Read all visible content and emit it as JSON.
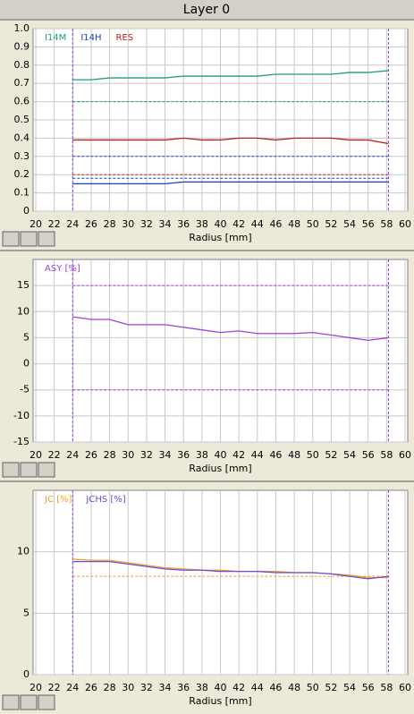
{
  "title": "Layer 0",
  "chart_data": [
    {
      "type": "line",
      "xlabel": "Radius [mm]",
      "x": [
        24,
        26,
        28,
        30,
        32,
        34,
        36,
        38,
        40,
        42,
        44,
        46,
        48,
        50,
        52,
        54,
        56,
        58.2
      ],
      "xlim": [
        20,
        60
      ],
      "xticks": [
        20,
        22,
        24,
        26,
        28,
        30,
        32,
        34,
        36,
        38,
        40,
        42,
        44,
        46,
        48,
        50,
        52,
        54,
        56,
        58,
        60
      ],
      "ylim": [
        0,
        1
      ],
      "yticks": [
        0,
        0.1,
        0.2,
        0.3,
        0.4,
        0.5,
        0.6,
        0.7,
        0.8,
        0.9,
        {
          "value": 1,
          "label": "1.0"
        }
      ],
      "grid": true,
      "series": [
        {
          "name": "I14M",
          "color": "#1a9e80",
          "values": [
            0.72,
            0.72,
            0.73,
            0.73,
            0.73,
            0.73,
            0.74,
            0.74,
            0.74,
            0.74,
            0.74,
            0.75,
            0.75,
            0.75,
            0.75,
            0.76,
            0.76,
            0.77
          ]
        },
        {
          "name": "I14H",
          "color": "#1f3fbf",
          "values": [
            0.15,
            0.15,
            0.15,
            0.15,
            0.15,
            0.15,
            0.16,
            0.16,
            0.16,
            0.16,
            0.16,
            0.16,
            0.16,
            0.16,
            0.16,
            0.16,
            0.16,
            0.16
          ]
        },
        {
          "name": "RES",
          "color": "#c01f1f",
          "values": [
            0.39,
            0.39,
            0.39,
            0.39,
            0.39,
            0.39,
            0.4,
            0.39,
            0.39,
            0.4,
            0.4,
            0.39,
            0.4,
            0.4,
            0.4,
            0.39,
            0.39,
            0.37
          ]
        }
      ],
      "hlines": [
        {
          "value": 0.6,
          "color": "#1a9e80"
        },
        {
          "value": 0.3,
          "color": "#1f3fbf"
        },
        {
          "value": 0.2,
          "color": "#c01f1f"
        },
        {
          "value": 0.18,
          "color": "#1f3fbf"
        }
      ],
      "vlines": [
        24,
        58.2
      ],
      "vline_color": "#8a3fe0"
    },
    {
      "type": "line",
      "xlabel": "Radius [mm]",
      "x": [
        24,
        26,
        28,
        30,
        32,
        34,
        36,
        38,
        40,
        42,
        44,
        46,
        48,
        50,
        52,
        54,
        56,
        58.2
      ],
      "xlim": [
        20,
        60
      ],
      "xticks": [
        20,
        22,
        24,
        26,
        28,
        30,
        32,
        34,
        36,
        38,
        40,
        42,
        44,
        46,
        48,
        50,
        52,
        54,
        56,
        58,
        60
      ],
      "ylim": [
        -15,
        20
      ],
      "yticks": [
        -15,
        -10,
        -5,
        0,
        5,
        10,
        15
      ],
      "grid": true,
      "series": [
        {
          "name": "ASY [%]",
          "color": "#a040e0",
          "values": [
            9,
            8.5,
            8.5,
            7.5,
            7.5,
            7.5,
            7,
            6.5,
            6,
            6.3,
            5.8,
            5.8,
            5.8,
            6,
            5.5,
            5,
            4.5,
            5
          ]
        }
      ],
      "hlines": [
        {
          "value": 15,
          "color": "#a040e0"
        },
        {
          "value": -5,
          "color": "#a040e0"
        }
      ],
      "vlines": [
        24,
        58.2
      ],
      "vline_color": "#8a3fe0"
    },
    {
      "type": "line",
      "xlabel": "Radius [mm]",
      "x": [
        24,
        26,
        28,
        30,
        32,
        34,
        36,
        38,
        40,
        42,
        44,
        46,
        48,
        50,
        52,
        54,
        56,
        58.2
      ],
      "xlim": [
        20,
        60
      ],
      "xticks": [
        20,
        22,
        24,
        26,
        28,
        30,
        32,
        34,
        36,
        38,
        40,
        42,
        44,
        46,
        48,
        50,
        52,
        54,
        56,
        58,
        60
      ],
      "ylim": [
        0,
        15
      ],
      "yticks": [
        0,
        5,
        10
      ],
      "grid": true,
      "series": [
        {
          "name": "JC [%]",
          "color": "#f0a020",
          "values": [
            9.4,
            9.3,
            9.3,
            9.1,
            8.9,
            8.7,
            8.6,
            8.5,
            8.5,
            8.4,
            8.4,
            8.4,
            8.3,
            8.3,
            8.2,
            8.1,
            7.9,
            7.9
          ]
        },
        {
          "name": "JCHS [%]",
          "color": "#6a4ae0",
          "values": [
            9.2,
            9.2,
            9.2,
            9,
            8.8,
            8.6,
            8.5,
            8.5,
            8.4,
            8.4,
            8.4,
            8.3,
            8.3,
            8.3,
            8.2,
            8,
            7.8,
            8
          ]
        }
      ],
      "hlines": [
        {
          "value": 8,
          "color": "#f0a020"
        }
      ],
      "vlines": [
        24,
        58.2
      ],
      "vline_color": "#8a3fe0"
    }
  ]
}
